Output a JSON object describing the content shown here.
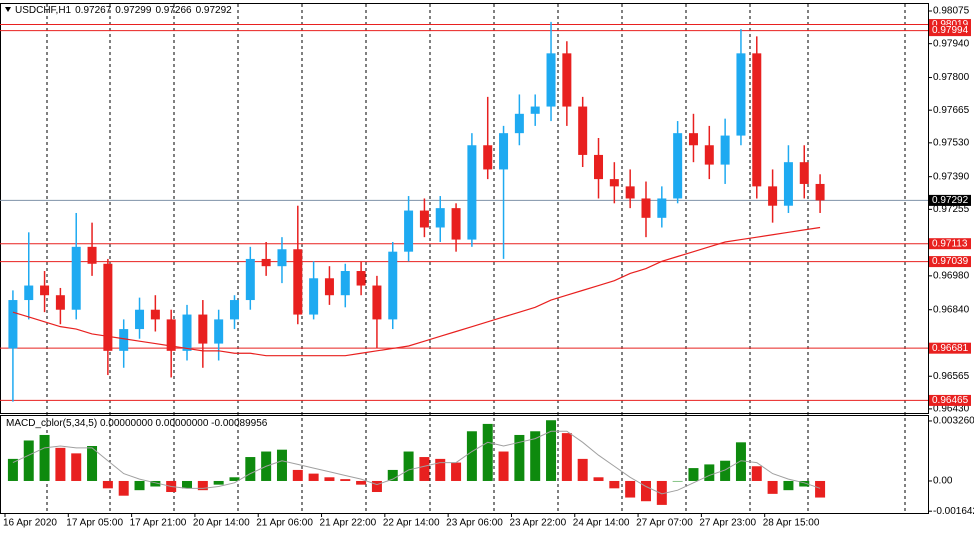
{
  "chart_data": [
    {
      "type": "candlestick",
      "title": "USDCHF,H1",
      "header_values": [
        0.97267,
        0.97299,
        0.97266,
        0.97292
      ],
      "categories": [
        "16 Apr 2020",
        null,
        null,
        null,
        "17 Apr 05:00",
        null,
        null,
        null,
        "17 Apr 21:00",
        null,
        null,
        null,
        "20 Apr 14:00",
        null,
        null,
        null,
        "21 Apr 06:00",
        null,
        null,
        null,
        "21 Apr 22:00",
        null,
        null,
        null,
        "22 Apr 14:00",
        null,
        null,
        null,
        "23 Apr 06:00",
        null,
        null,
        null,
        "23 Apr 22:00",
        null,
        null,
        null,
        "24 Apr 14:00",
        null,
        null,
        null,
        "27 Apr 07:00",
        null,
        null,
        null,
        "27 Apr 23:00",
        null,
        null,
        null,
        "28 Apr 15:00",
        null,
        null,
        null
      ],
      "open": [
        0.9668,
        0.9688,
        0.9694,
        0.969,
        0.9684,
        0.971,
        0.9703,
        0.9667,
        0.9676,
        0.9684,
        0.968,
        0.9667,
        0.9682,
        0.967,
        0.968,
        0.9688,
        0.9705,
        0.9702,
        0.9709,
        0.9682,
        0.9697,
        0.969,
        0.97,
        0.9694,
        0.968,
        0.9708,
        0.9725,
        0.9718,
        0.9726,
        0.9713,
        0.9752,
        0.9742,
        0.9757,
        0.9765,
        0.9768,
        0.979,
        0.9768,
        0.9748,
        0.9738,
        0.9735,
        0.973,
        0.9722,
        0.973,
        0.9757,
        0.9752,
        0.9744,
        0.9756,
        0.979,
        0.9735,
        0.9727,
        0.9745,
        0.9736
      ],
      "high": [
        0.9692,
        0.9716,
        0.97,
        0.9693,
        0.9724,
        0.972,
        0.9705,
        0.968,
        0.9689,
        0.969,
        0.9684,
        0.9686,
        0.9688,
        0.9684,
        0.969,
        0.971,
        0.9712,
        0.9714,
        0.9727,
        0.9704,
        0.9702,
        0.9703,
        0.9704,
        0.9698,
        0.9712,
        0.9731,
        0.973,
        0.9731,
        0.9728,
        0.9757,
        0.9772,
        0.976,
        0.9773,
        0.9773,
        0.9803,
        0.9795,
        0.9772,
        0.9755,
        0.9745,
        0.9742,
        0.9737,
        0.9735,
        0.9762,
        0.9765,
        0.976,
        0.9763,
        0.98,
        0.9797,
        0.9742,
        0.9752,
        0.9752,
        0.974
      ],
      "low": [
        0.9646,
        0.968,
        0.9683,
        0.9678,
        0.968,
        0.9698,
        0.9657,
        0.966,
        0.9672,
        0.9675,
        0.9656,
        0.9663,
        0.966,
        0.9663,
        0.9676,
        0.9684,
        0.9698,
        0.9695,
        0.9678,
        0.968,
        0.9686,
        0.9685,
        0.969,
        0.9668,
        0.9676,
        0.9704,
        0.9714,
        0.9712,
        0.9708,
        0.971,
        0.9738,
        0.9705,
        0.9752,
        0.976,
        0.9762,
        0.976,
        0.9743,
        0.973,
        0.9728,
        0.9726,
        0.9714,
        0.9718,
        0.9728,
        0.9745,
        0.9738,
        0.9736,
        0.9752,
        0.973,
        0.972,
        0.9724,
        0.973,
        0.9724
      ],
      "close": [
        0.9688,
        0.9694,
        0.969,
        0.9684,
        0.971,
        0.9703,
        0.9667,
        0.9676,
        0.9684,
        0.968,
        0.9667,
        0.9682,
        0.967,
        0.968,
        0.9688,
        0.9705,
        0.9702,
        0.9709,
        0.9682,
        0.9697,
        0.969,
        0.97,
        0.9694,
        0.968,
        0.9708,
        0.9725,
        0.9718,
        0.9726,
        0.9713,
        0.9752,
        0.9742,
        0.9757,
        0.9765,
        0.9768,
        0.979,
        0.9768,
        0.9748,
        0.9738,
        0.9735,
        0.973,
        0.9722,
        0.973,
        0.9757,
        0.9752,
        0.9744,
        0.9756,
        0.979,
        0.9735,
        0.9727,
        0.9745,
        0.9736,
        0.97292
      ],
      "up_color": "#1eaaf1",
      "down_color": "#e8201f",
      "ma": {
        "color": "#e8201f",
        "values": [
          0.9683,
          0.9681,
          0.9679,
          0.9677,
          0.9676,
          0.9674,
          0.9673,
          0.9672,
          0.9671,
          0.967,
          0.9669,
          0.9668,
          0.9667,
          0.9667,
          0.9666,
          0.9666,
          0.9665,
          0.9665,
          0.9665,
          0.9665,
          0.9665,
          0.9665,
          0.9666,
          0.9667,
          0.9668,
          0.9669,
          0.9671,
          0.9673,
          0.9675,
          0.9677,
          0.9679,
          0.9681,
          0.9683,
          0.9685,
          0.9688,
          0.969,
          0.9692,
          0.9694,
          0.9696,
          0.9699,
          0.9701,
          0.9704,
          0.9706,
          0.9708,
          0.971,
          0.9712,
          0.9713,
          0.9714,
          0.9715,
          0.9716,
          0.9717,
          0.9718
        ]
      },
      "ylim": [
        0.96413,
        0.98104
      ],
      "yticks": [
        0.98075,
        {
          "value": 0.9794,
          "label": "0.97940"
        },
        {
          "value": 0.978,
          "label": "0.97800"
        },
        0.97665,
        {
          "value": 0.9753,
          "label": "0.97530"
        },
        {
          "value": 0.9739,
          "label": "0.97390"
        },
        0.97255,
        {
          "value": 0.9698,
          "label": "0.96980"
        },
        {
          "value": 0.9684,
          "label": "0.96840"
        },
        0.96565,
        {
          "value": 0.9643,
          "label": "0.96430"
        }
      ],
      "hlines": [
        {
          "value": 0.98019,
          "color": "#e8201f"
        },
        {
          "value": 0.97994,
          "color": "#e8201f"
        },
        {
          "value": 0.97113,
          "color": "#e8201f"
        },
        {
          "value": 0.97039,
          "color": "#e8201f"
        },
        {
          "value": 0.96681,
          "color": "#e8201f"
        },
        {
          "value": 0.96465,
          "color": "#e8201f"
        }
      ],
      "current_price": {
        "value": 0.97292,
        "color": "#7f93a8"
      }
    },
    {
      "type": "bar",
      "title": "MACD_color(5,34,5)",
      "header_text": "0.00000000 0.00000000 -0.00089956",
      "values": [
        0.0012,
        0.0022,
        0.0025,
        0.0018,
        0.0015,
        0.0019,
        -0.0004,
        -0.0008,
        -0.0005,
        -0.0003,
        -0.0006,
        -0.0004,
        -0.0005,
        -0.0002,
        0.0002,
        0.0013,
        0.0016,
        0.0017,
        0.0006,
        0.0004,
        0.0002,
        0.0001,
        -0.0002,
        -0.0006,
        0.0006,
        0.0016,
        0.0013,
        0.0012,
        0.001,
        0.0027,
        0.0031,
        0.0016,
        0.0025,
        0.0027,
        0.0033,
        0.0026,
        0.0012,
        0.0002,
        -0.0004,
        -0.0009,
        -0.0011,
        -0.0013,
        0.0,
        0.0007,
        0.0009,
        0.0011,
        0.0021,
        0.0008,
        -0.0007,
        -0.0005,
        -0.0003,
        -0.0009
      ],
      "up_color": "#0e8a0e",
      "down_color": "#e8201f",
      "signal": {
        "color": "#a0a0a0",
        "values": [
          0.001,
          0.0014,
          0.0018,
          0.0019,
          0.0018,
          0.0018,
          0.0011,
          0.0004,
          0.0001,
          -0.0001,
          -0.0003,
          -0.0004,
          -0.0004,
          -0.0003,
          -0.0001,
          0.0004,
          0.0008,
          0.0011,
          0.0009,
          0.0007,
          0.0005,
          0.0003,
          0.0001,
          -0.0002,
          0.0001,
          0.0006,
          0.0008,
          0.001,
          0.001,
          0.0016,
          0.0021,
          0.0019,
          0.0021,
          0.0023,
          0.0027,
          0.0027,
          0.0021,
          0.0014,
          0.0008,
          0.0002,
          -0.0003,
          -0.0007,
          -0.0005,
          -0.0001,
          0.0003,
          0.0006,
          0.0011,
          0.001,
          0.0004,
          0.0001,
          -0.0001,
          -0.0004
        ]
      },
      "ylim": [
        -0.00174,
        0.00353
      ],
      "yticks": [
        0.0032606,
        {
          "value": 0,
          "label": "0.00"
        },
        -0.001642
      ]
    }
  ]
}
